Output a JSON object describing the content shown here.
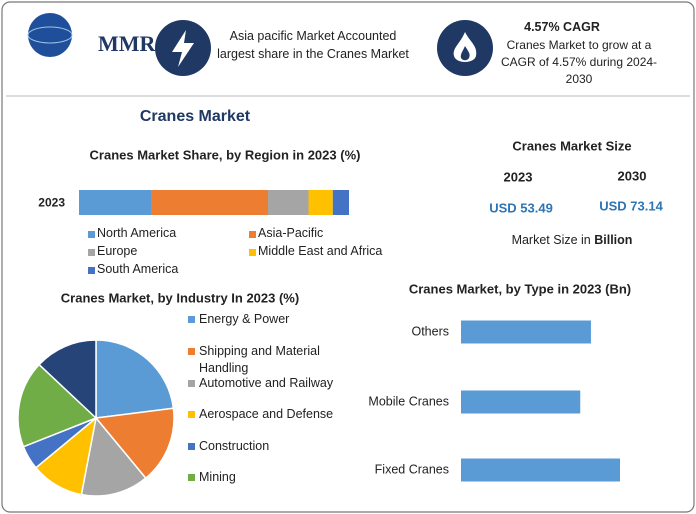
{
  "header": {
    "logo": "MMR",
    "info1": "Asia pacific Market Accounted largest share in the Cranes Market",
    "info2_title": "4.57% CAGR",
    "info2_text": "Cranes Market to grow at a CAGR of 4.57% during 2024-2030"
  },
  "title": "Cranes Market",
  "market_size": {
    "title": "Cranes Market Size",
    "years": [
      "2023",
      "2030"
    ],
    "values": [
      "USD 53.49",
      "USD 73.14"
    ],
    "note": "Market Size in ",
    "unit": "Billion"
  },
  "chart_data": [
    {
      "type": "stacked-bar",
      "title": "Cranes Market Share, by Region in 2023 (%)",
      "categories": [
        "2023"
      ],
      "series": [
        {
          "name": "North America",
          "color": "#5b9bd5",
          "values": [
            27
          ]
        },
        {
          "name": "Asia-Pacific",
          "color": "#ed7d31",
          "values": [
            43
          ]
        },
        {
          "name": "Europe",
          "color": "#a5a5a5",
          "values": [
            15
          ]
        },
        {
          "name": "Middle East and Africa",
          "color": "#ffc000",
          "values": [
            9
          ]
        },
        {
          "name": "South America",
          "color": "#4472c4",
          "values": [
            6
          ]
        }
      ]
    },
    {
      "type": "pie",
      "title": "Cranes Market, by Industry In 2023 (%)",
      "categories": [
        "Energy & Power",
        "Shipping and Material Handling",
        "Automotive and Railway",
        "Aerospace and Defense",
        "Construction",
        "Mining",
        null
      ],
      "values": [
        23,
        16,
        14,
        11,
        5,
        18,
        13
      ],
      "colors": [
        "#5b9bd5",
        "#ed7d31",
        "#a5a5a5",
        "#ffc000",
        "#4472c4",
        "#70ad47",
        "#264478"
      ]
    },
    {
      "type": "hbar",
      "title": "Cranes Market, by Type in 2023 (Bn)",
      "categories": [
        "Others",
        "Mobile Cranes",
        "Fixed Cranes"
      ],
      "values": [
        17.0,
        15.6,
        20.8
      ],
      "color": "#5b9bd5"
    }
  ]
}
